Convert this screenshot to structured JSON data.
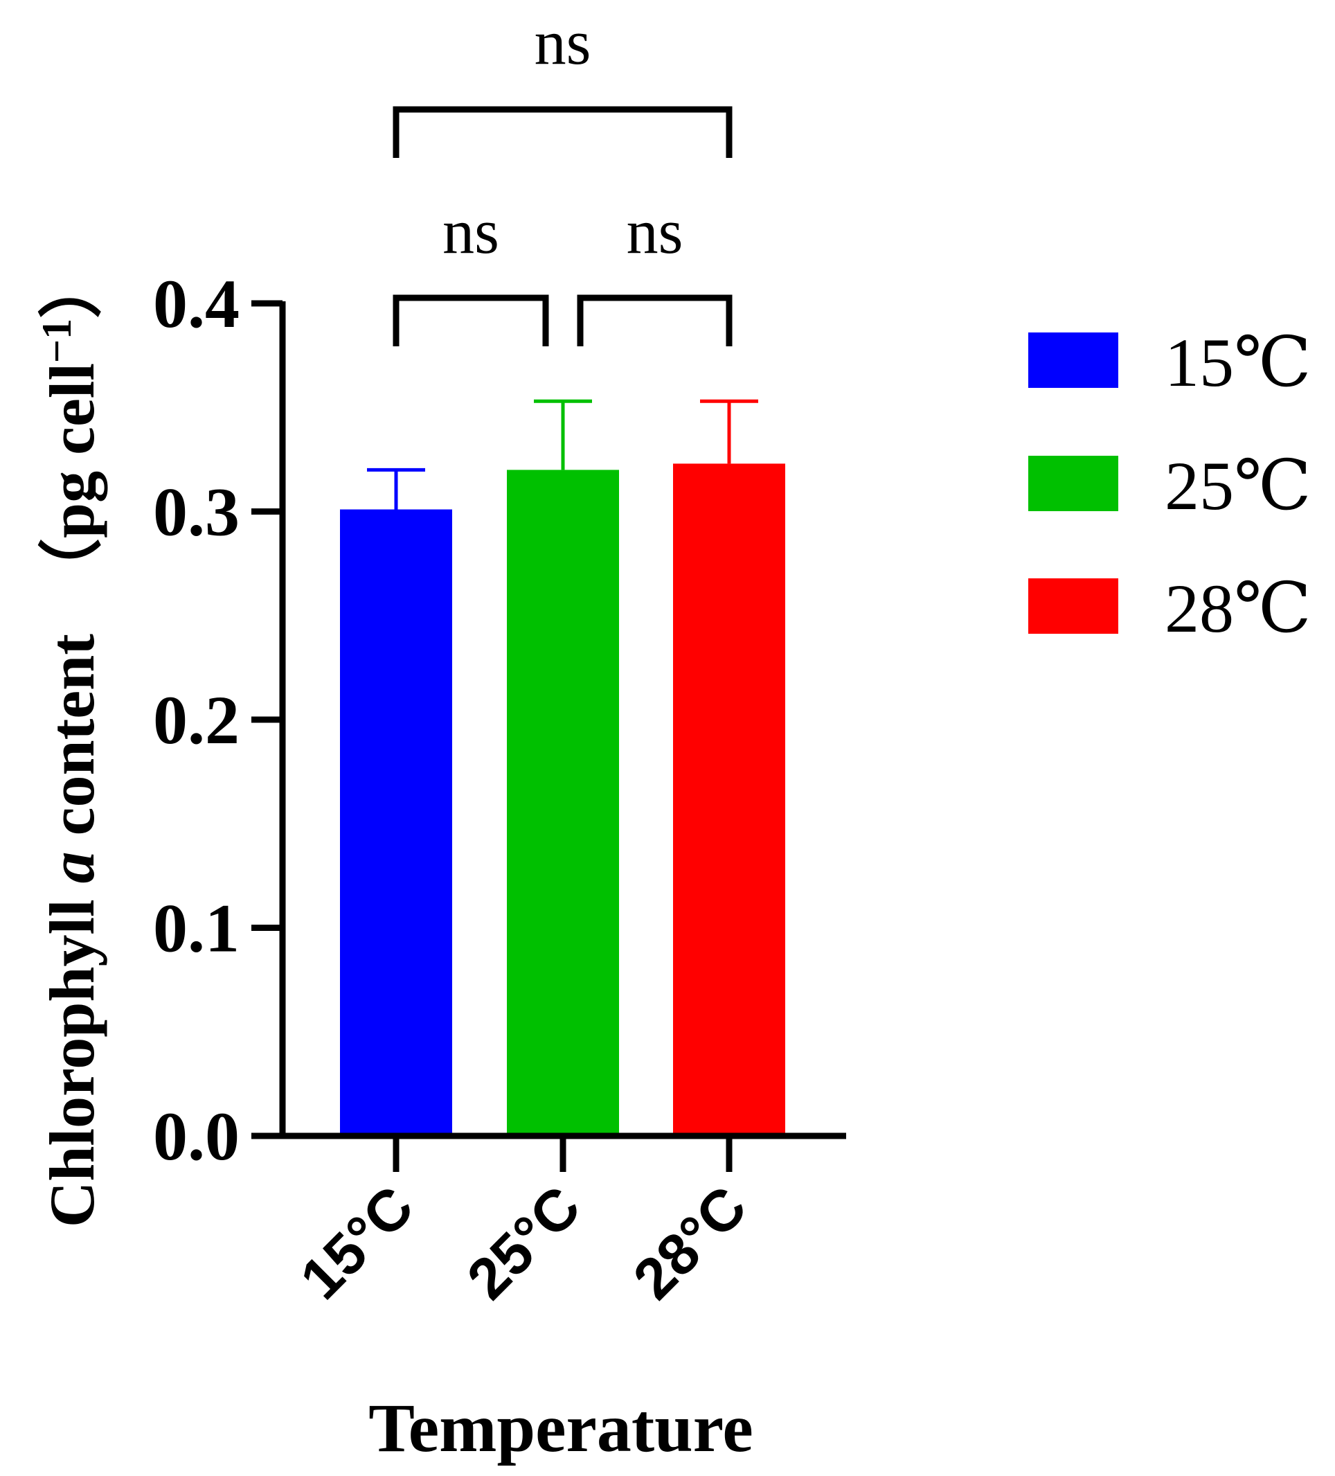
{
  "chart_data": {
    "type": "bar",
    "categories": [
      "15°C",
      "25°C",
      "28°C"
    ],
    "values": [
      0.301,
      0.32,
      0.323
    ],
    "error_upper": [
      0.32,
      0.353,
      0.353
    ],
    "colors": [
      "#0000ff",
      "#00c000",
      "#ff0000"
    ],
    "xlabel": "Temperature",
    "ylabel": {
      "prefix": "Chlorophyll ",
      "italic": "a",
      "middle": " content　（pg cell",
      "superscript": "−1",
      "suffix": "）"
    },
    "ylim": [
      0,
      0.4
    ],
    "yticks": [
      "0.0",
      "0.1",
      "0.2",
      "0.3",
      "0.4"
    ],
    "legend": {
      "position": "right",
      "entries": [
        "15℃",
        "25℃",
        "28℃"
      ]
    },
    "significance": [
      {
        "from": 0,
        "to": 1,
        "label": "ns"
      },
      {
        "from": 1,
        "to": 2,
        "label": "ns"
      },
      {
        "from": 0,
        "to": 2,
        "label": "ns"
      }
    ]
  }
}
